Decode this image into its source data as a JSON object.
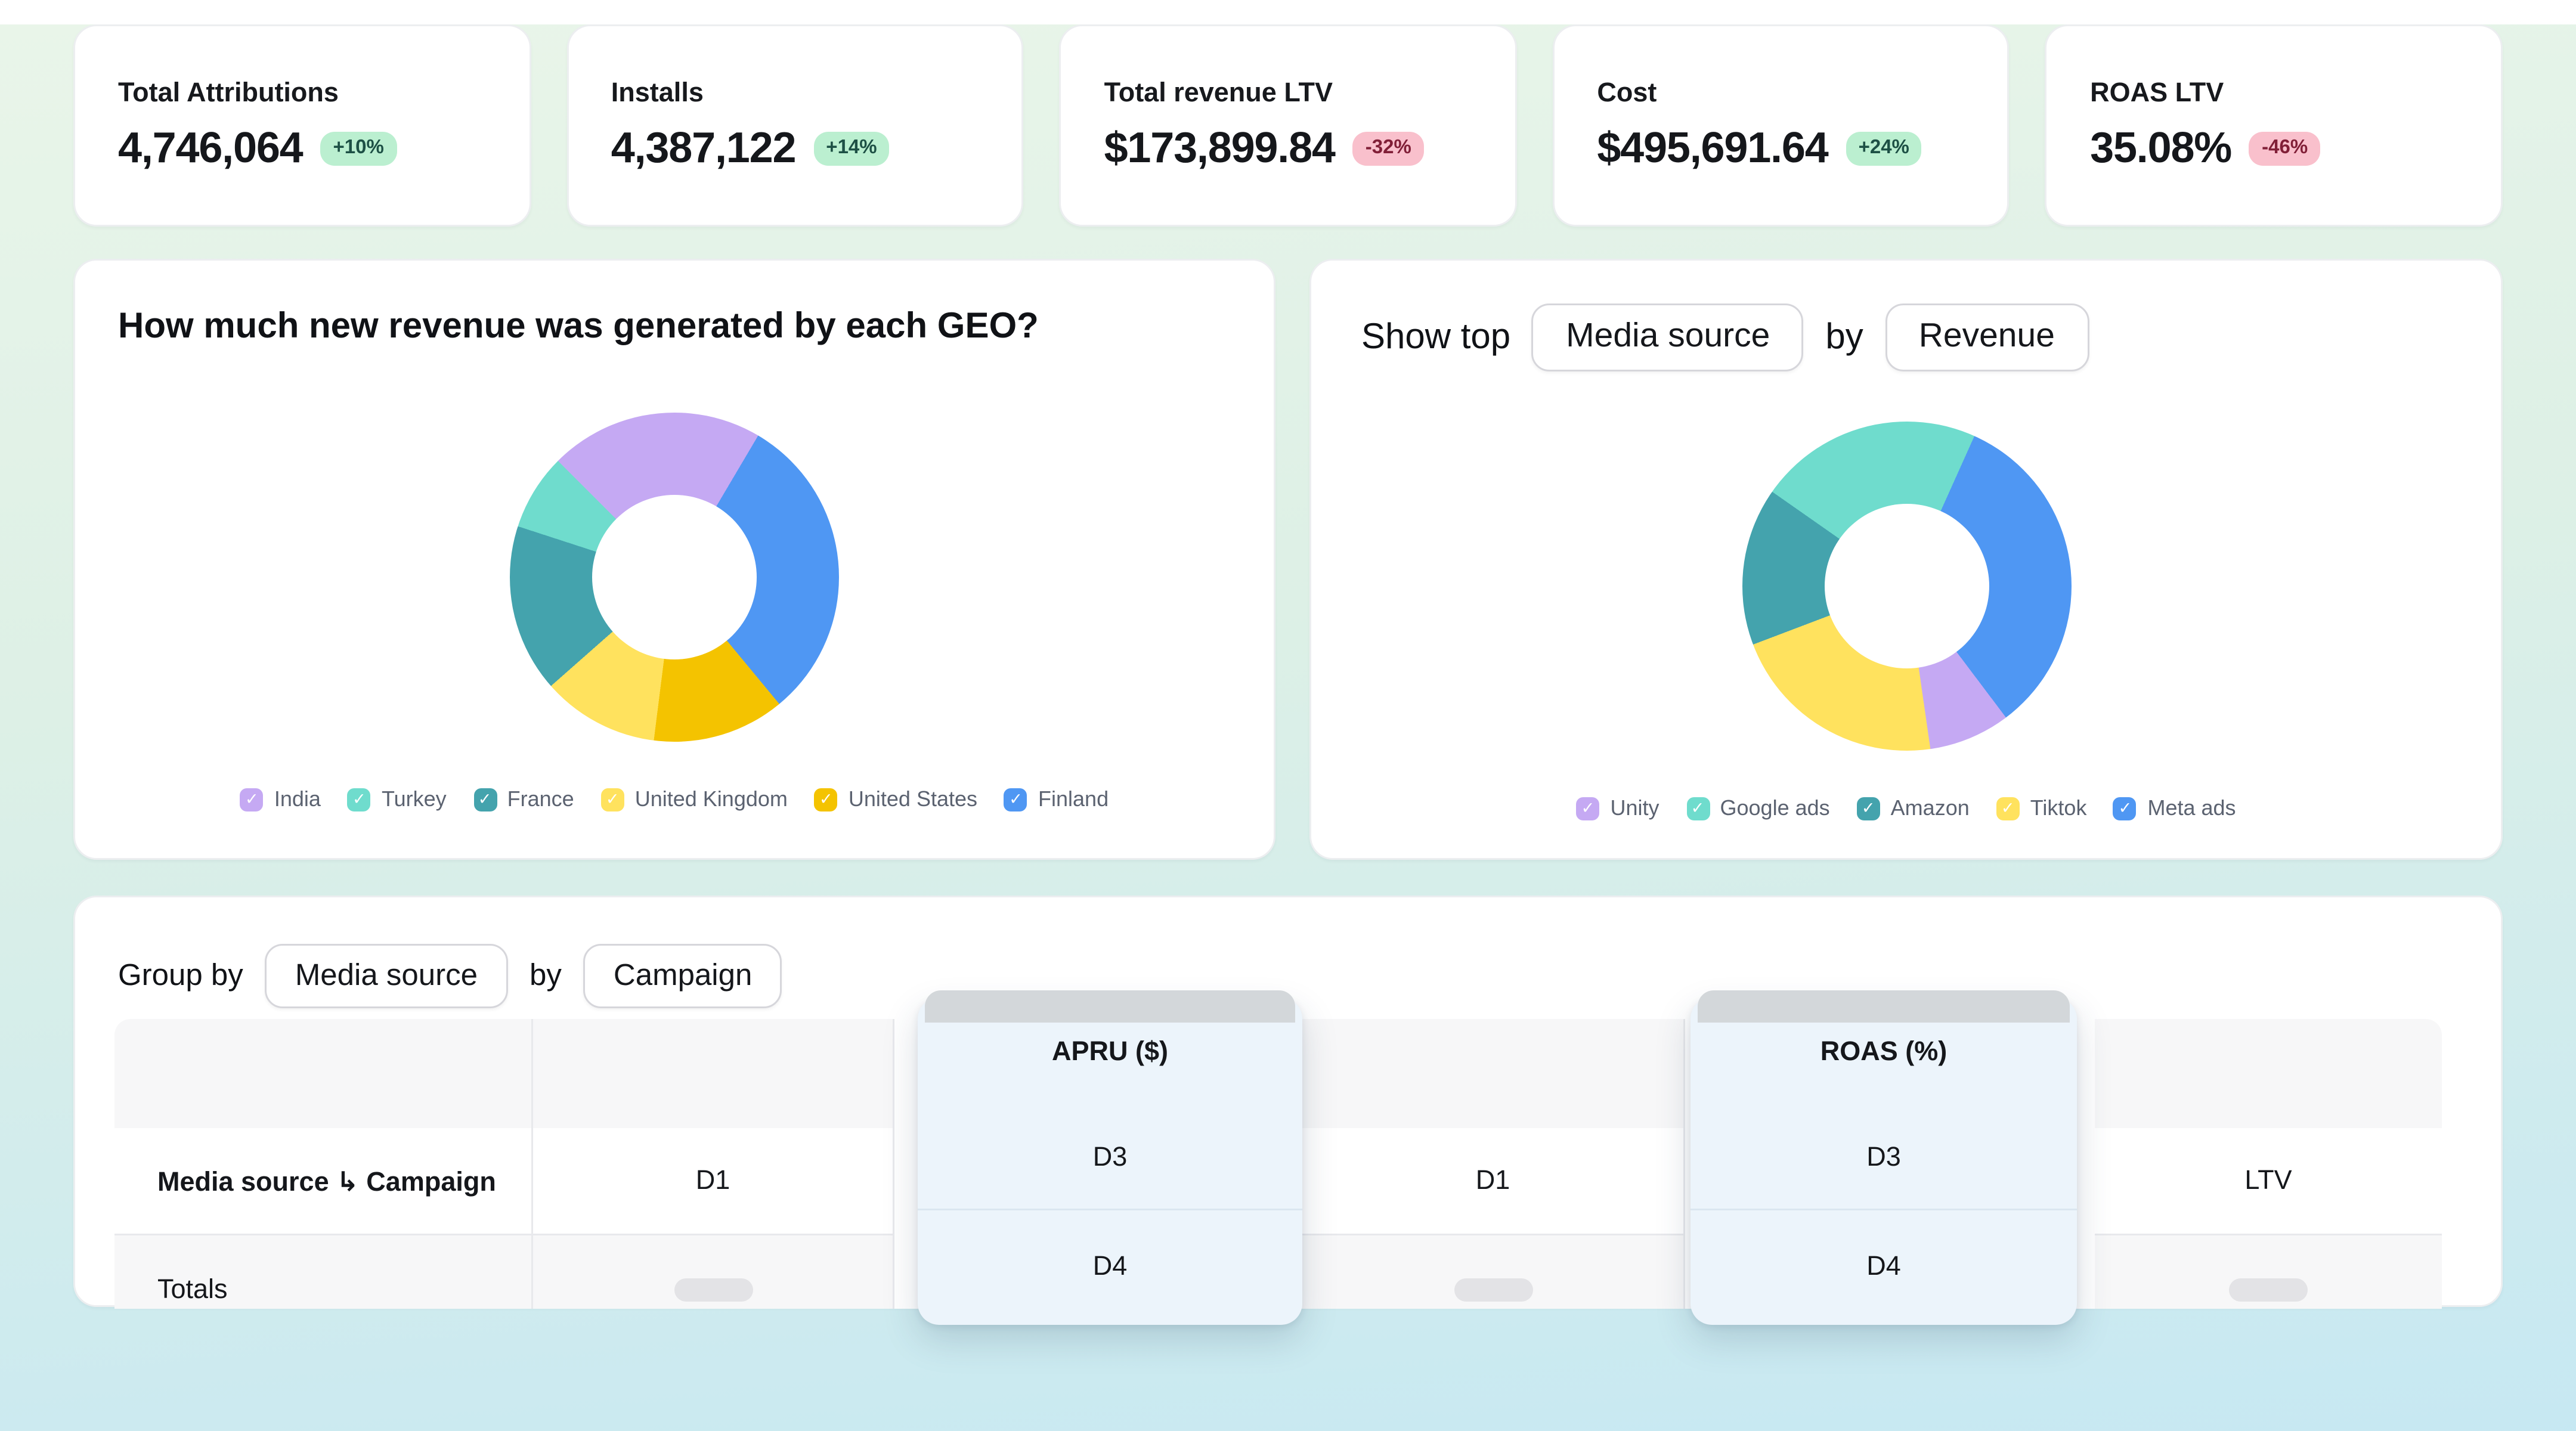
{
  "kpis": [
    {
      "label": "Total Attributions",
      "value": "4,746,064",
      "delta": "+10%",
      "trend": "up"
    },
    {
      "label": "Installs",
      "value": "4,387,122",
      "delta": "+14%",
      "trend": "up"
    },
    {
      "label": "Total revenue LTV",
      "value": "$173,899.84",
      "delta": "-32%",
      "trend": "down"
    },
    {
      "label": "Cost",
      "value": "$495,691.64",
      "delta": "+24%",
      "trend": "up"
    },
    {
      "label": "ROAS LTV",
      "value": "35.08%",
      "delta": "-46%",
      "trend": "down"
    }
  ],
  "geo_panel": {
    "title": "How much new revenue was generated by each GEO?",
    "legend": [
      {
        "label": "India",
        "color": "#c5a9f3"
      },
      {
        "label": "Turkey",
        "color": "#6fdccd"
      },
      {
        "label": "France",
        "color": "#44a3ad"
      },
      {
        "label": "United Kingdom",
        "color": "#ffe25e"
      },
      {
        "label": "United States",
        "color": "#f4c300"
      },
      {
        "label": "Finland",
        "color": "#4f97f3"
      }
    ]
  },
  "top_panel": {
    "prefix_label": "Show top",
    "dimension_value": "Media source",
    "connector_label": "by",
    "metric_value": "Revenue",
    "legend": [
      {
        "label": "Unity",
        "color": "#c5a9f3"
      },
      {
        "label": "Google ads",
        "color": "#6fdccd"
      },
      {
        "label": "Amazon",
        "color": "#44a3ad"
      },
      {
        "label": "Tiktok",
        "color": "#ffe25e"
      },
      {
        "label": "Meta ads",
        "color": "#4f97f3"
      }
    ]
  },
  "table_panel": {
    "group_by_label": "Group by",
    "dimension_value": "Media source",
    "connector_label": "by",
    "breakdown_value": "Campaign",
    "first_column_header": "Media source ↳ Campaign",
    "col_d1_first": "D1",
    "col_d1_second": "D1",
    "col_ltv": "LTV",
    "apru_group": {
      "title": "APRU ($)",
      "sub_d3": "D3",
      "sub_d4": "D4"
    },
    "roas_group": {
      "title": "ROAS (%)",
      "sub_d3": "D3",
      "sub_d4": "D4"
    },
    "totals_label": "Totals"
  },
  "chart_data": [
    {
      "type": "donut",
      "title": "How much new revenue was generated by each GEO?",
      "legend_position": "bottom",
      "values_are_visual_estimates_pct": true,
      "start_angle_deg": -45,
      "segments": [
        {
          "label": "India",
          "pct": 21.0,
          "color": "#c5a9f3"
        },
        {
          "label": "Finland",
          "pct": 30.5,
          "color": "#4f97f3"
        },
        {
          "label": "United States",
          "pct": 13.0,
          "color": "#f4c300"
        },
        {
          "label": "United Kingdom",
          "pct": 11.5,
          "color": "#ffe25e"
        },
        {
          "label": "France",
          "pct": 16.5,
          "color": "#44a3ad"
        },
        {
          "label": "Turkey",
          "pct": 7.5,
          "color": "#6fdccd"
        }
      ],
      "legend_order": [
        "India",
        "Turkey",
        "France",
        "United Kingdom",
        "United States",
        "Finland"
      ]
    },
    {
      "type": "donut",
      "title": "Show top Media source by Revenue",
      "legend_position": "bottom",
      "values_are_visual_estimates_pct": true,
      "start_angle_deg": -55,
      "segments": [
        {
          "label": "Google ads",
          "pct": 22.0,
          "color": "#6fdccd"
        },
        {
          "label": "Meta ads",
          "pct": 33.0,
          "color": "#4f97f3"
        },
        {
          "label": "Unity",
          "pct": 8.0,
          "color": "#c5a9f3"
        },
        {
          "label": "Tiktok",
          "pct": 21.5,
          "color": "#ffe25e"
        },
        {
          "label": "Amazon",
          "pct": 15.5,
          "color": "#44a3ad"
        }
      ],
      "legend_order": [
        "Unity",
        "Google ads",
        "Amazon",
        "Tiktok",
        "Meta ads"
      ]
    }
  ],
  "colors": {
    "badge_up_bg": "#bbefd0",
    "badge_up_text": "#1d5045",
    "badge_down_bg": "#f9c0cc",
    "badge_down_text": "#811f37",
    "float_panel_bg": "#ecf4fb",
    "table_band_bg": "#f7f7f8",
    "background_top": "#e9f5e9",
    "background_bottom": "#c6e8f3"
  }
}
